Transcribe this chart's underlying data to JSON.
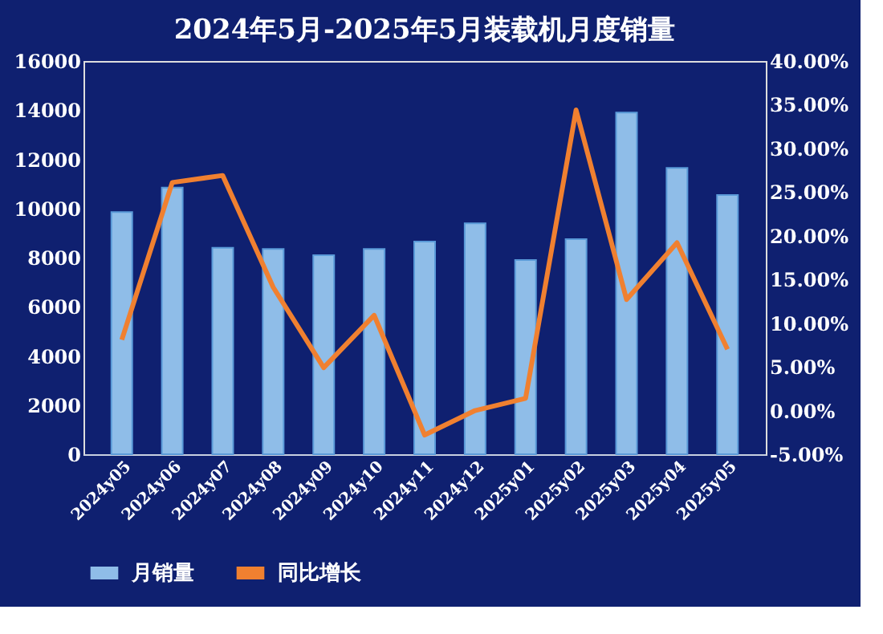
{
  "chart_data": {
    "type": "bar",
    "title": "2024年5月-2025年5月装载机月度销量",
    "categories": [
      "2024y05",
      "2024y06",
      "2024y07",
      "2024y08",
      "2024y09",
      "2024y10",
      "2024y11",
      "2024y12",
      "2025y01",
      "2025y02",
      "2025y03",
      "2025y04",
      "2025y05"
    ],
    "series": [
      {
        "name": "月销量",
        "color": "#8fbde8",
        "values": [
          9850,
          10850,
          8400,
          8350,
          8100,
          8350,
          8650,
          9400,
          7900,
          8750,
          13900,
          11650,
          10550
        ]
      },
      {
        "name": "同比增长",
        "type": "line",
        "axis": "y2",
        "color": "#f08030",
        "values": [
          8.1,
          26.1,
          26.9,
          14.1,
          4.9,
          10.9,
          -2.8,
          0.0,
          1.4,
          34.4,
          12.7,
          19.2,
          7.0
        ]
      }
    ],
    "ylim": [
      0,
      16000
    ],
    "yticks": [
      0,
      2000,
      4000,
      6000,
      8000,
      10000,
      12000,
      14000,
      16000
    ],
    "y2lim": [
      -5,
      40
    ],
    "y2ticks": [
      {
        "value": -5,
        "label": "-5.00%"
      },
      {
        "value": 0,
        "label": "0.00%"
      },
      {
        "value": 5,
        "label": "5.00%"
      },
      {
        "value": 10,
        "label": "10.00%"
      },
      {
        "value": 15,
        "label": "15.00%"
      },
      {
        "value": 20,
        "label": "20.00%"
      },
      {
        "value": 25,
        "label": "25.00%"
      },
      {
        "value": 30,
        "label": "30.00%"
      },
      {
        "value": 35,
        "label": "35.00%"
      },
      {
        "value": 40,
        "label": "40.00%"
      }
    ],
    "grid": false,
    "legend": "bottom",
    "marker": "none",
    "line_style": "solid"
  }
}
